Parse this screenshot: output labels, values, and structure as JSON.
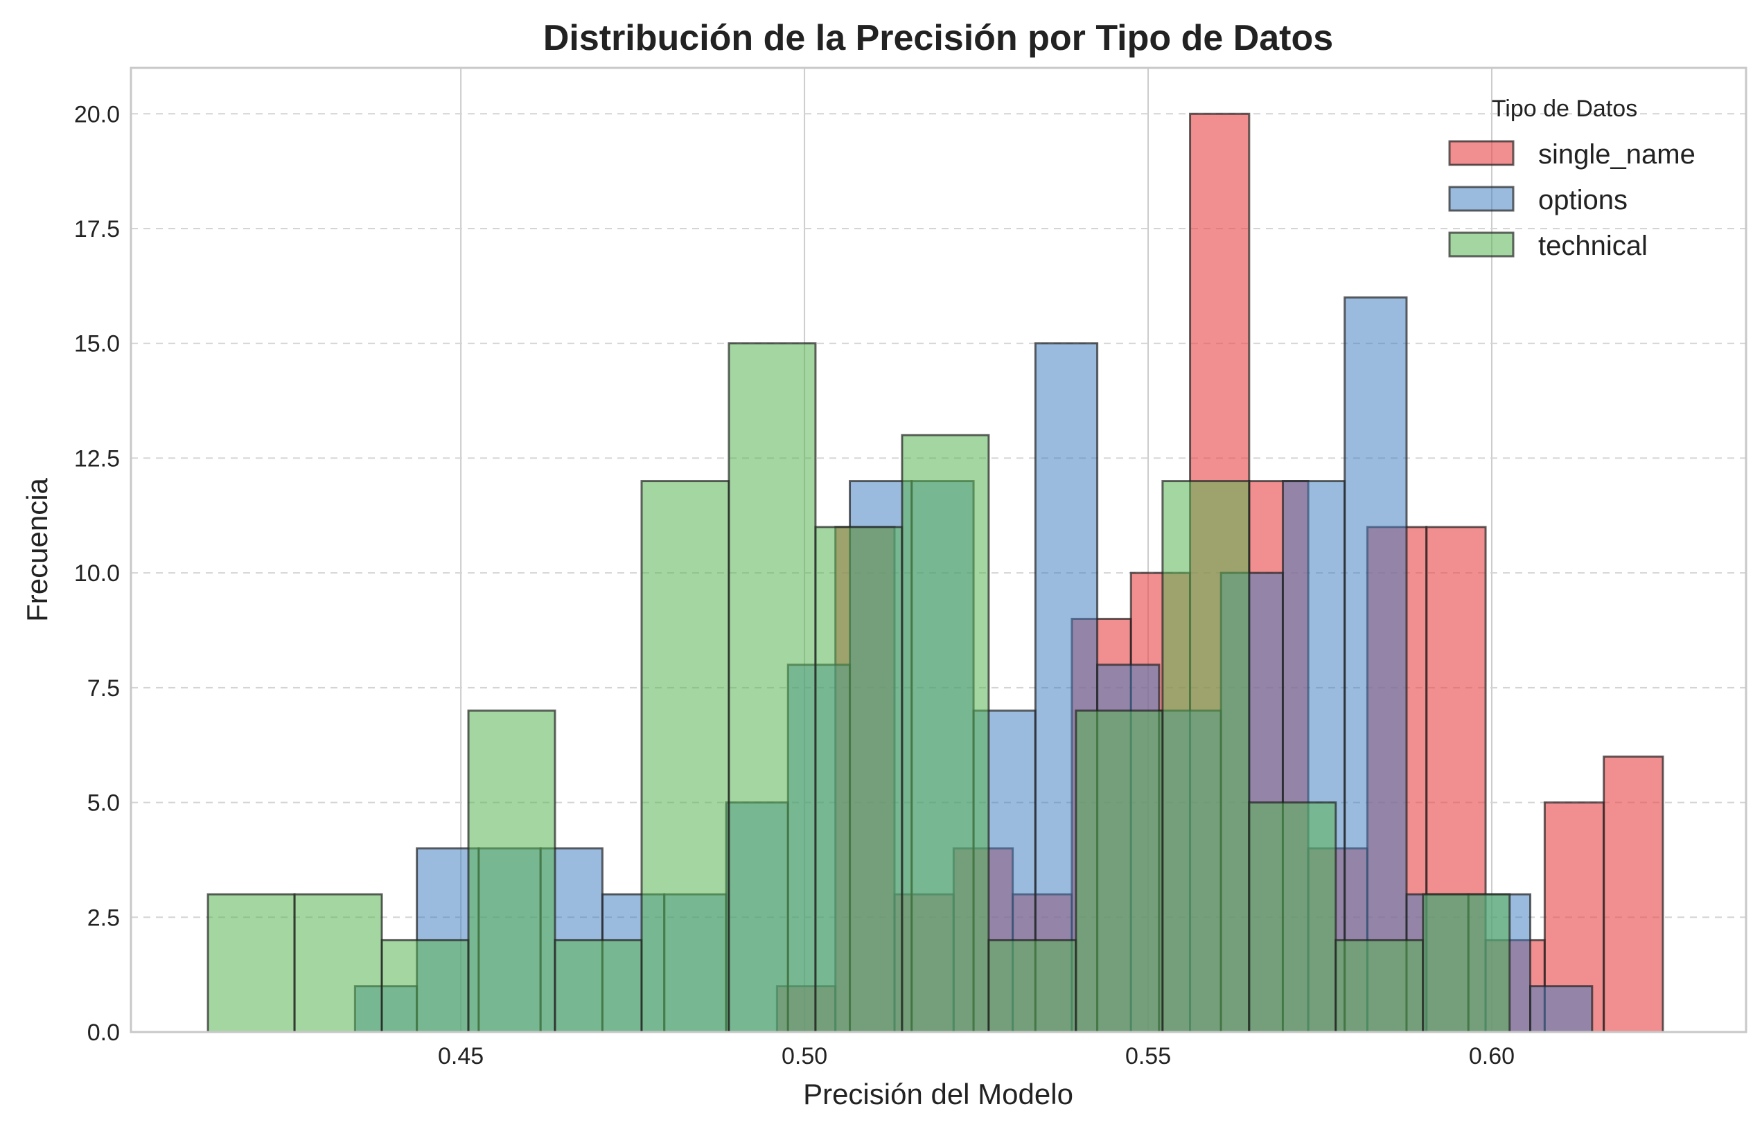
{
  "colors": {
    "single_name": "#E8494B",
    "options": "#3F7DBF",
    "technical": "#5AB553",
    "bar_edge": "#222222",
    "grid": "#cccccc",
    "frame": "#c8c8c8"
  },
  "chart_data": {
    "type": "bar",
    "title": "Distribución de la Precisión por Tipo de Datos",
    "xlabel": "Precisión del Modelo",
    "ylabel": "Frecuencia",
    "xlim": [
      0.402,
      0.637
    ],
    "ylim": [
      0,
      21
    ],
    "xticks": [
      "0.45",
      "0.50",
      "0.55",
      "0.60"
    ],
    "xtick_values": [
      0.45,
      0.5,
      0.55,
      0.6
    ],
    "yticks": [
      "0.0",
      "2.5",
      "5.0",
      "7.5",
      "10.0",
      "12.5",
      "15.0",
      "17.5",
      "20.0"
    ],
    "ytick_values": [
      0,
      2.5,
      5,
      7.5,
      10,
      12.5,
      15,
      17.5,
      20
    ],
    "grid": {
      "x": "solid",
      "y": "dashed"
    },
    "legend": {
      "title": "Tipo de Datos",
      "placement": "top-right"
    },
    "series": [
      {
        "name": "single_name",
        "bin_edges": [
          0.496,
          0.5045,
          0.5131,
          0.5217,
          0.5303,
          0.5389,
          0.5475,
          0.5561,
          0.5647,
          0.5733,
          0.5819,
          0.5905,
          0.5991,
          0.6077,
          0.6163,
          0.6249
        ],
        "values": [
          1,
          11,
          3,
          4,
          3,
          9,
          10,
          20,
          12,
          4,
          11,
          11,
          2,
          5,
          6
        ]
      },
      {
        "name": "options",
        "bin_edges": [
          0.4346,
          0.4436,
          0.4526,
          0.4616,
          0.4706,
          0.4796,
          0.4886,
          0.4976,
          0.5066,
          0.5156,
          0.5246,
          0.5336,
          0.5426,
          0.5516,
          0.5606,
          0.5696,
          0.5786,
          0.5876,
          0.5966,
          0.6056,
          0.6146
        ],
        "values": [
          1,
          4,
          4,
          4,
          3,
          3,
          5,
          8,
          12,
          12,
          7,
          15,
          8,
          7,
          10,
          12,
          16,
          3,
          3,
          1
        ]
      },
      {
        "name": "technical",
        "bin_edges": [
          0.4132,
          0.4258,
          0.4385,
          0.4511,
          0.4637,
          0.4763,
          0.489,
          0.5016,
          0.5142,
          0.5268,
          0.5395,
          0.5521,
          0.5647,
          0.5773,
          0.59,
          0.6026
        ],
        "values": [
          3,
          3,
          2,
          7,
          2,
          12,
          15,
          11,
          13,
          2,
          7,
          12,
          5,
          2,
          3
        ]
      }
    ]
  }
}
